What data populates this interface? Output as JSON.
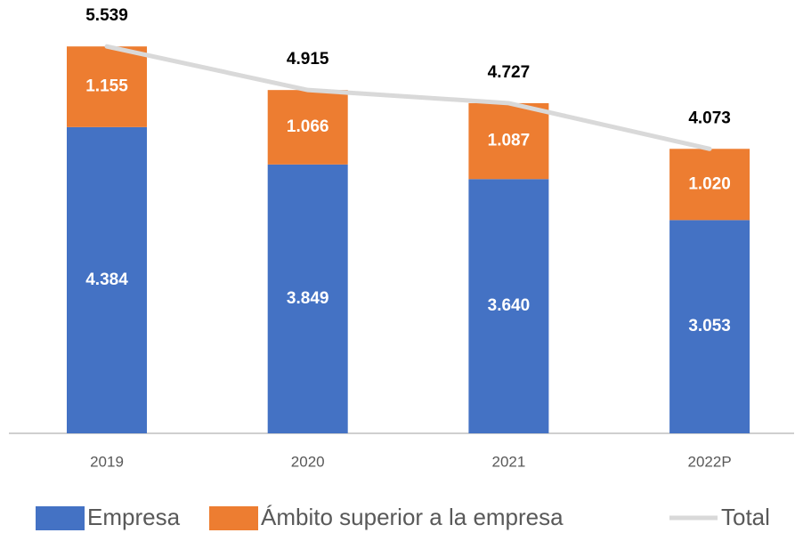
{
  "chart_data": {
    "type": "bar",
    "stacked": true,
    "categories": [
      "2019",
      "2020",
      "2021",
      "2022P"
    ],
    "series": [
      {
        "name": "Empresa",
        "color": "#4472c4",
        "values": [
          4384,
          3849,
          3640,
          3053
        ],
        "value_labels": [
          "4.384",
          "3.849",
          "3.640",
          "3.053"
        ]
      },
      {
        "name": "Ámbito superior a la empresa",
        "color": "#ed7d31",
        "values": [
          1155,
          1066,
          1087,
          1020
        ],
        "value_labels": [
          "1.155",
          "1.066",
          "1.087",
          "1.020"
        ]
      },
      {
        "name": "Total",
        "type": "line",
        "color": "#d9d9d9",
        "values": [
          5539,
          4915,
          4727,
          4073
        ],
        "value_labels": [
          "5.539",
          "4.915",
          "4.727",
          "4.073"
        ]
      }
    ],
    "ylim": [
      0,
      6000
    ]
  }
}
